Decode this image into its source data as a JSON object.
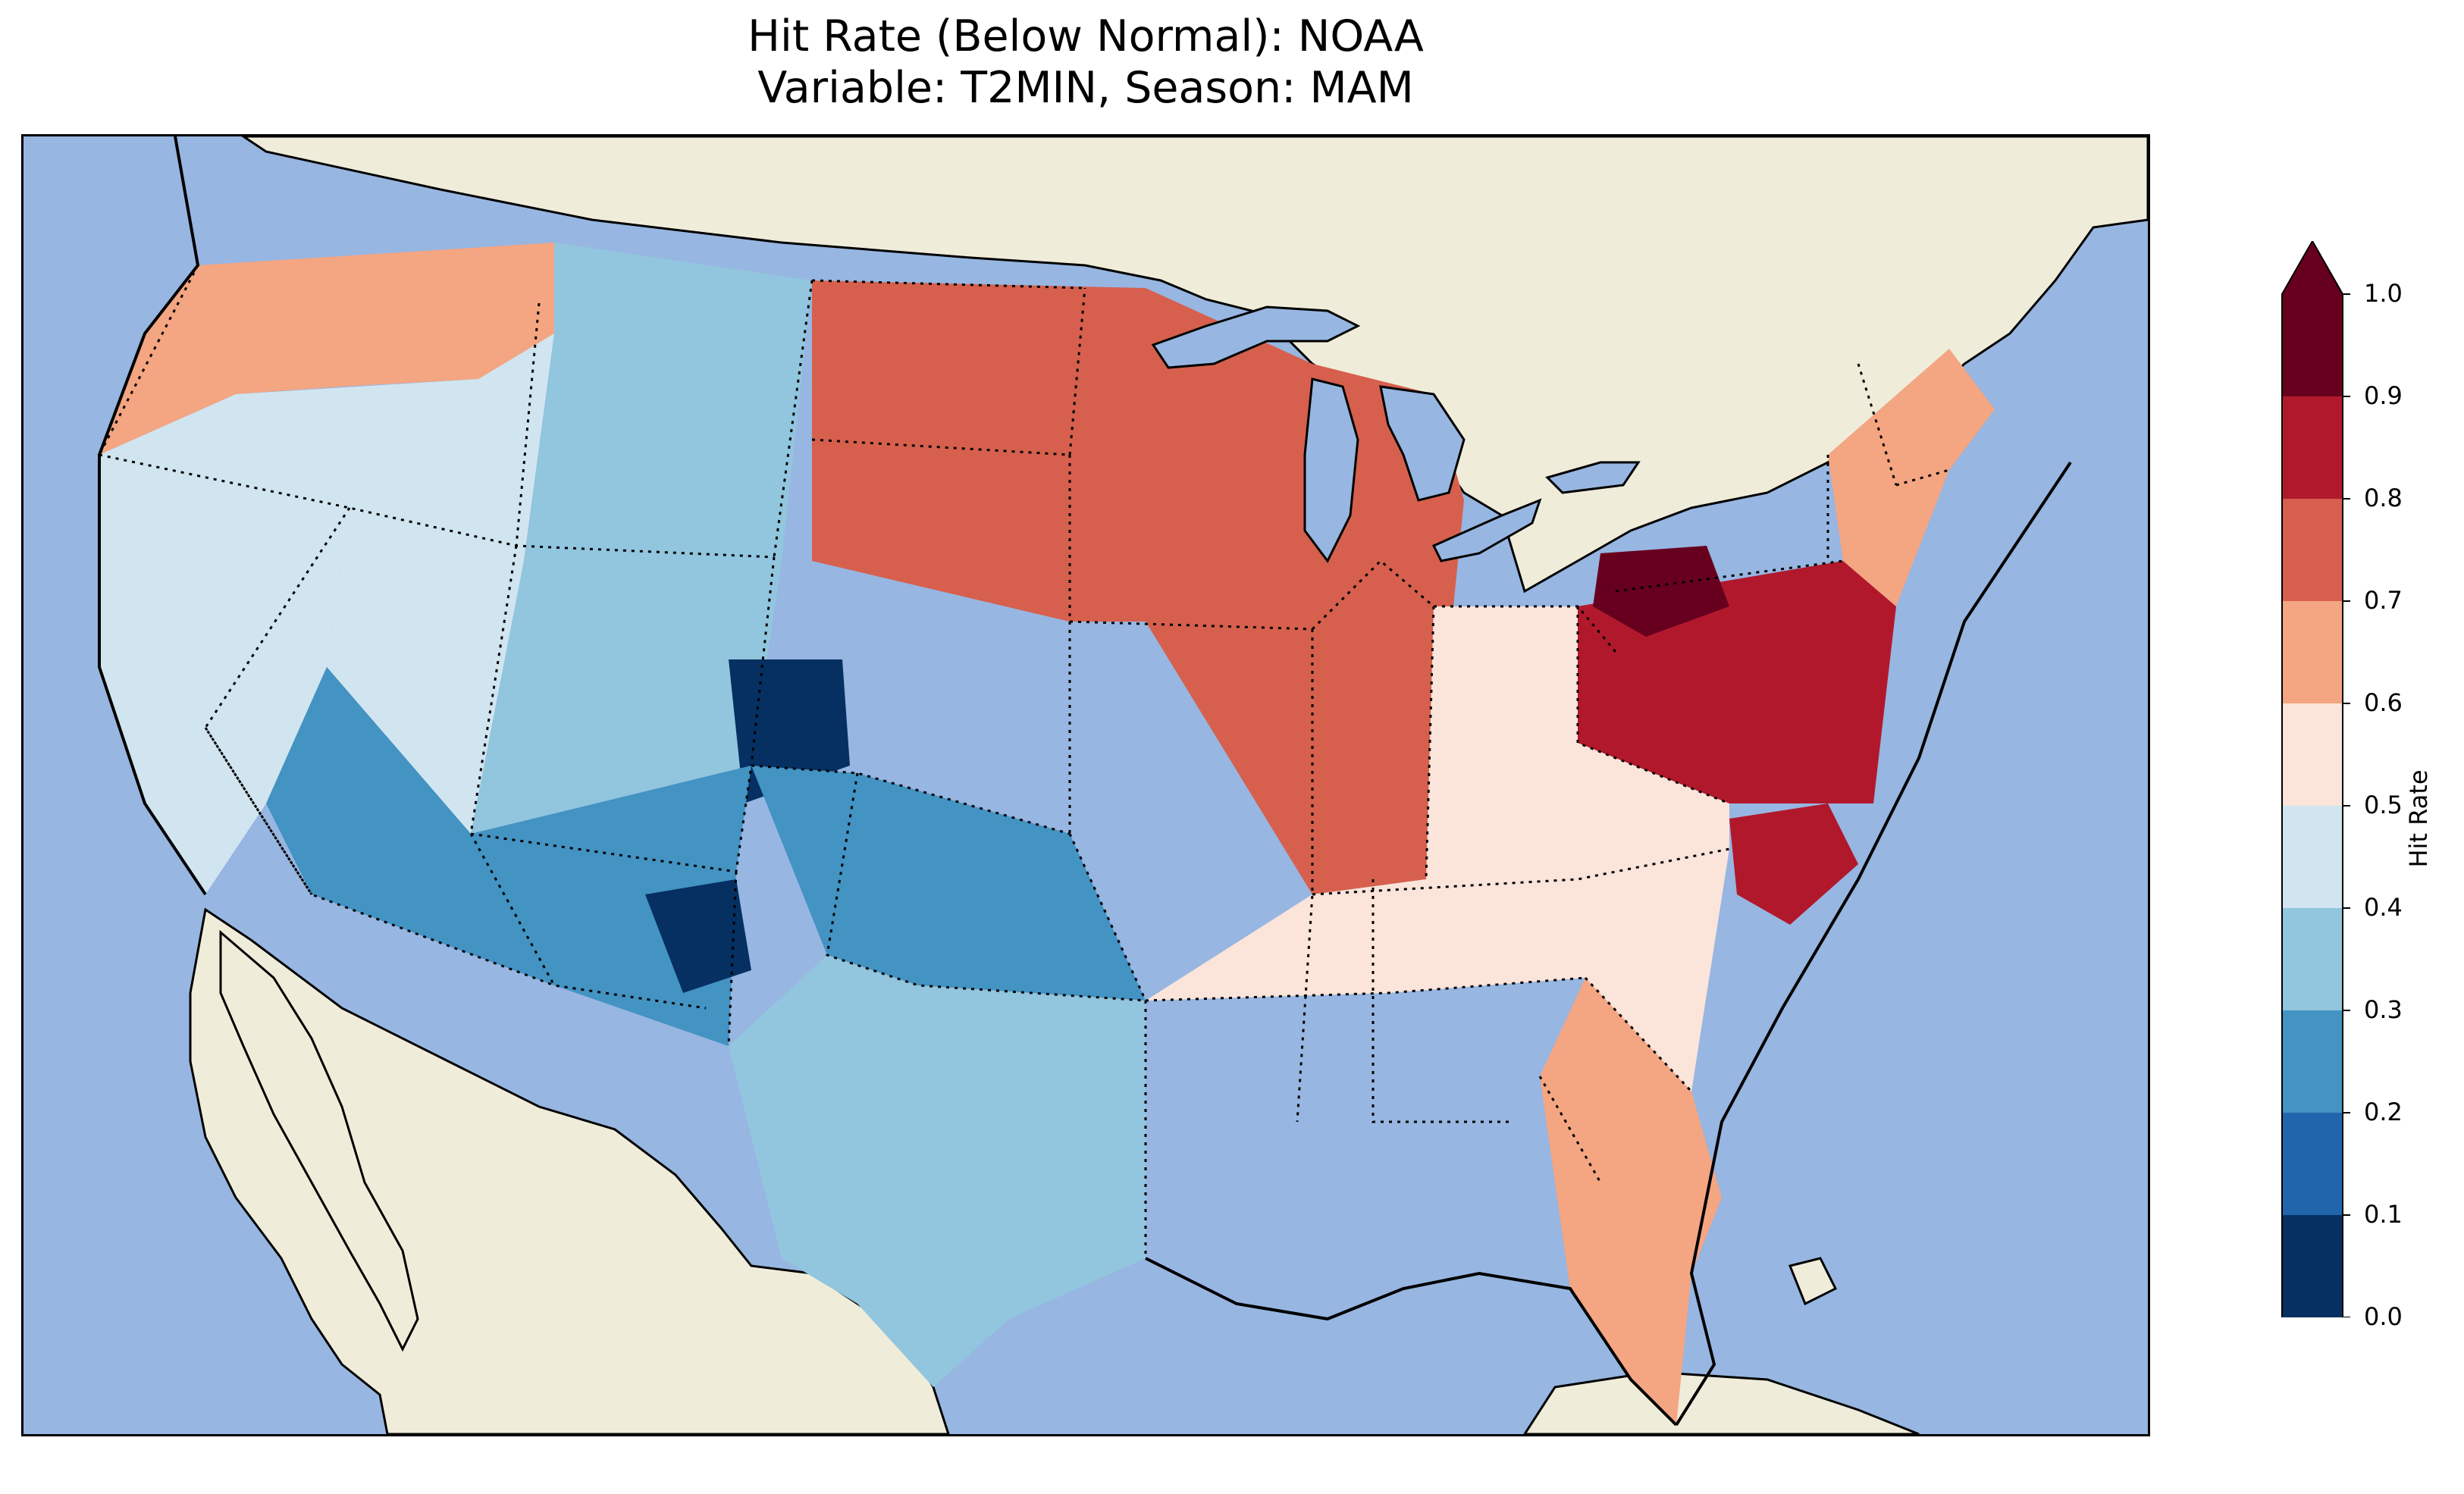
{
  "title": {
    "line1": "Hit Rate (Below Normal): NOAA",
    "line2": "Variable: T2MIN, Season: MAM"
  },
  "map": {
    "projection": "Lambert Conformal, CONUS",
    "colors": {
      "ocean": "#97b6e1",
      "land": "#efedda",
      "coast": "#000000"
    },
    "regions": [
      {
        "name": "pacific-northwest",
        "value": 0.65
      },
      {
        "name": "west-coast",
        "value": 0.45
      },
      {
        "name": "great-basin",
        "value": 0.42
      },
      {
        "name": "rocky-mountains",
        "value": 0.3
      },
      {
        "name": "colorado-core",
        "value": 0.05
      },
      {
        "name": "southwest",
        "value": 0.25
      },
      {
        "name": "new-mexico-core",
        "value": 0.08
      },
      {
        "name": "southern-plains",
        "value": 0.22
      },
      {
        "name": "texas",
        "value": 0.3
      },
      {
        "name": "northern-plains",
        "value": 0.7
      },
      {
        "name": "upper-midwest",
        "value": 0.72
      },
      {
        "name": "ohio-valley",
        "value": 0.55
      },
      {
        "name": "southeast",
        "value": 0.52
      },
      {
        "name": "florida",
        "value": 0.62
      },
      {
        "name": "mid-atlantic",
        "value": 0.85
      },
      {
        "name": "pennsylvania-core",
        "value": 0.93
      },
      {
        "name": "new-england",
        "value": 0.6
      },
      {
        "name": "north-carolina-coast",
        "value": 0.82
      }
    ]
  },
  "colorbar": {
    "label": "Hit Rate",
    "ticks": [
      "1.0",
      "0.9",
      "0.8",
      "0.7",
      "0.6",
      "0.5",
      "0.4",
      "0.3",
      "0.2",
      "0.1",
      "0.0"
    ],
    "levels": [
      0.0,
      0.1,
      0.2,
      0.3,
      0.4,
      0.5,
      0.6,
      0.7,
      0.8,
      0.9,
      1.0
    ],
    "colors": [
      "#053061",
      "#2166ac",
      "#4393c3",
      "#92c5de",
      "#d1e5f0",
      "#fbe4da",
      "#f4a582",
      "#d6604d",
      "#b2182b",
      "#67001f"
    ],
    "extend": "both"
  }
}
